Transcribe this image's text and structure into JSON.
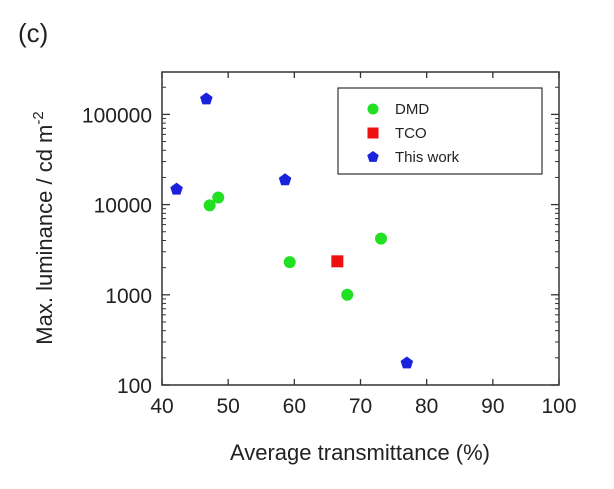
{
  "panel_label": "(c)",
  "chart_data": {
    "type": "scatter",
    "title": "",
    "xlabel": "Average transmittance (%)",
    "ylabel": "Max. luminance / cd m",
    "ylabel_superscript": "-2",
    "xlim": [
      40,
      100
    ],
    "ylim": [
      100,
      300000
    ],
    "yscale": "log",
    "x_ticks": [
      40,
      50,
      60,
      70,
      80,
      90,
      100
    ],
    "y_ticks": [
      100,
      1000,
      10000,
      100000
    ],
    "y_tick_labels": [
      "100",
      "1000",
      "10000",
      "100000"
    ],
    "grid": false,
    "legend_position": "top-right",
    "series": [
      {
        "name": "DMD",
        "marker": "circle",
        "color": "#22e022",
        "points": [
          {
            "x": 47.2,
            "y": 9800
          },
          {
            "x": 48.5,
            "y": 12000
          },
          {
            "x": 59.3,
            "y": 2300
          },
          {
            "x": 68.0,
            "y": 1000
          },
          {
            "x": 73.1,
            "y": 4200
          }
        ]
      },
      {
        "name": "TCO",
        "marker": "square",
        "color": "#ee1111",
        "points": [
          {
            "x": 66.5,
            "y": 2350
          }
        ]
      },
      {
        "name": "This work",
        "marker": "pentagon",
        "color": "#1a22dd",
        "points": [
          {
            "x": 42.2,
            "y": 14800
          },
          {
            "x": 46.7,
            "y": 148000
          },
          {
            "x": 58.6,
            "y": 18800
          },
          {
            "x": 77.0,
            "y": 175
          }
        ]
      }
    ]
  }
}
